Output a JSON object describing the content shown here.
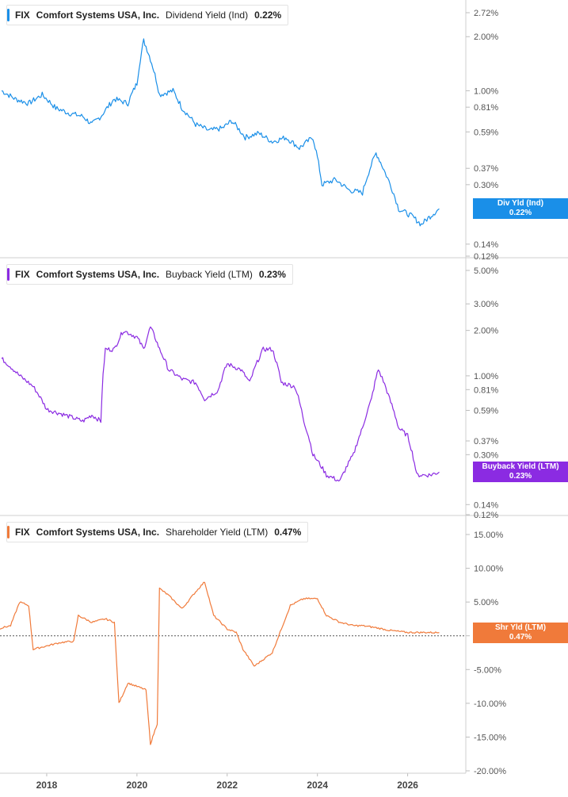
{
  "colors": {
    "dividend": "#1a8fe8",
    "buyback": "#8b2be2",
    "shareholder": "#f07a3a"
  },
  "panels": [
    {
      "id": "dividend",
      "legend": {
        "ticker": "FIX",
        "company": "Comfort Systems USA, Inc.",
        "metric": "Dividend Yield (Ind)",
        "value": "0.22%"
      },
      "badge": {
        "label": "Div Yld (Ind)",
        "value": "0.22%"
      },
      "ticks": [
        "2.72%",
        "2.00%",
        "1.00%",
        "0.81%",
        "0.59%",
        "0.37%",
        "0.30%",
        "0.14%",
        "0.12%"
      ]
    },
    {
      "id": "buyback",
      "legend": {
        "ticker": "FIX",
        "company": "Comfort Systems USA, Inc.",
        "metric": "Buyback Yield (LTM)",
        "value": "0.23%"
      },
      "badge": {
        "label": "Buyback Yield (LTM)",
        "value": "0.23%"
      },
      "ticks": [
        "5.00%",
        "3.00%",
        "2.00%",
        "1.00%",
        "0.81%",
        "0.59%",
        "0.37%",
        "0.30%",
        "0.14%",
        "0.12%"
      ]
    },
    {
      "id": "shareholder",
      "legend": {
        "ticker": "FIX",
        "company": "Comfort Systems USA, Inc.",
        "metric": "Shareholder Yield (LTM)",
        "value": "0.47%"
      },
      "badge": {
        "label": "Shr Yld (LTM)",
        "value": "0.47%"
      },
      "ticks": [
        "15.00%",
        "10.00%",
        "5.00%",
        "0.00%",
        "-5.00%",
        "-10.00%",
        "-15.00%",
        "-20.00%"
      ]
    }
  ],
  "x_axis_labels": [
    "2018",
    "2020",
    "2022",
    "2024",
    "2026"
  ],
  "chart_data": [
    {
      "type": "line",
      "title": "FIX Comfort Systems USA, Inc. Dividend Yield (Ind) 0.22%",
      "y_scale": "log",
      "ylim": [
        0.12,
        2.72
      ],
      "series": [
        {
          "name": "Dividend Yield (Ind)",
          "unit": "%",
          "points": [
            [
              2017.0,
              1.0
            ],
            [
              2017.3,
              0.9
            ],
            [
              2017.6,
              0.85
            ],
            [
              2017.9,
              0.95
            ],
            [
              2018.2,
              0.8
            ],
            [
              2018.5,
              0.75
            ],
            [
              2018.8,
              0.72
            ],
            [
              2019.0,
              0.65
            ],
            [
              2019.2,
              0.72
            ],
            [
              2019.5,
              0.9
            ],
            [
              2019.8,
              0.85
            ],
            [
              2020.0,
              1.1
            ],
            [
              2020.15,
              1.9
            ],
            [
              2020.3,
              1.5
            ],
            [
              2020.5,
              0.95
            ],
            [
              2020.8,
              1.0
            ],
            [
              2021.0,
              0.8
            ],
            [
              2021.3,
              0.65
            ],
            [
              2021.6,
              0.6
            ],
            [
              2021.9,
              0.62
            ],
            [
              2022.1,
              0.68
            ],
            [
              2022.4,
              0.55
            ],
            [
              2022.7,
              0.58
            ],
            [
              2023.0,
              0.52
            ],
            [
              2023.3,
              0.55
            ],
            [
              2023.6,
              0.48
            ],
            [
              2023.9,
              0.55
            ],
            [
              2024.1,
              0.3
            ],
            [
              2024.4,
              0.32
            ],
            [
              2024.7,
              0.28
            ],
            [
              2025.0,
              0.27
            ],
            [
              2025.3,
              0.45
            ],
            [
              2025.5,
              0.35
            ],
            [
              2025.8,
              0.22
            ],
            [
              2026.1,
              0.2
            ],
            [
              2026.3,
              0.18
            ],
            [
              2026.5,
              0.2
            ],
            [
              2026.7,
              0.22
            ]
          ]
        }
      ]
    },
    {
      "type": "line",
      "title": "FIX Comfort Systems USA, Inc. Buyback Yield (LTM) 0.23%",
      "y_scale": "log",
      "ylim": [
        0.12,
        5.0
      ],
      "series": [
        {
          "name": "Buyback Yield (LTM)",
          "unit": "%",
          "points": [
            [
              2017.0,
              1.3
            ],
            [
              2017.4,
              1.0
            ],
            [
              2017.7,
              0.85
            ],
            [
              2018.0,
              0.6
            ],
            [
              2018.4,
              0.55
            ],
            [
              2018.8,
              0.5
            ],
            [
              2019.0,
              0.55
            ],
            [
              2019.2,
              0.5
            ],
            [
              2019.3,
              1.5
            ],
            [
              2019.5,
              1.5
            ],
            [
              2019.7,
              2.0
            ],
            [
              2020.0,
              1.8
            ],
            [
              2020.15,
              1.5
            ],
            [
              2020.3,
              2.1
            ],
            [
              2020.5,
              1.5
            ],
            [
              2020.7,
              1.1
            ],
            [
              2021.0,
              0.95
            ],
            [
              2021.3,
              0.9
            ],
            [
              2021.5,
              0.7
            ],
            [
              2021.8,
              0.8
            ],
            [
              2022.0,
              1.2
            ],
            [
              2022.3,
              1.1
            ],
            [
              2022.5,
              0.9
            ],
            [
              2022.8,
              1.5
            ],
            [
              2023.0,
              1.5
            ],
            [
              2023.2,
              0.9
            ],
            [
              2023.5,
              0.85
            ],
            [
              2023.7,
              0.5
            ],
            [
              2023.9,
              0.3
            ],
            [
              2024.2,
              0.22
            ],
            [
              2024.5,
              0.2
            ],
            [
              2024.8,
              0.3
            ],
            [
              2025.0,
              0.45
            ],
            [
              2025.2,
              0.7
            ],
            [
              2025.35,
              1.1
            ],
            [
              2025.6,
              0.7
            ],
            [
              2025.8,
              0.45
            ],
            [
              2026.0,
              0.4
            ],
            [
              2026.2,
              0.22
            ],
            [
              2026.5,
              0.22
            ],
            [
              2026.7,
              0.23
            ]
          ]
        }
      ]
    },
    {
      "type": "line",
      "title": "FIX Comfort Systems USA, Inc. Shareholder Yield (LTM) 0.47%",
      "ylim": [
        -20,
        15
      ],
      "series": [
        {
          "name": "Shareholder Yield (LTM)",
          "unit": "%",
          "points": [
            [
              2016.9,
              1.0
            ],
            [
              2017.2,
              1.5
            ],
            [
              2017.4,
              5.0
            ],
            [
              2017.6,
              4.5
            ],
            [
              2017.7,
              -2.0
            ],
            [
              2018.0,
              -1.5
            ],
            [
              2018.3,
              -1.0
            ],
            [
              2018.6,
              -0.8
            ],
            [
              2018.7,
              3.0
            ],
            [
              2019.0,
              2.0
            ],
            [
              2019.3,
              2.5
            ],
            [
              2019.5,
              2.0
            ],
            [
              2019.6,
              -10.0
            ],
            [
              2019.8,
              -7.0
            ],
            [
              2020.0,
              -7.5
            ],
            [
              2020.2,
              -8.0
            ],
            [
              2020.3,
              -16.0
            ],
            [
              2020.45,
              -13.0
            ],
            [
              2020.5,
              7.0
            ],
            [
              2020.7,
              6.0
            ],
            [
              2021.0,
              4.0
            ],
            [
              2021.3,
              6.5
            ],
            [
              2021.5,
              8.0
            ],
            [
              2021.7,
              3.0
            ],
            [
              2022.0,
              1.0
            ],
            [
              2022.2,
              0.5
            ],
            [
              2022.35,
              -2.0
            ],
            [
              2022.6,
              -4.5
            ],
            [
              2022.8,
              -3.5
            ],
            [
              2023.0,
              -2.5
            ],
            [
              2023.2,
              1.0
            ],
            [
              2023.4,
              4.5
            ],
            [
              2023.7,
              5.5
            ],
            [
              2024.0,
              5.5
            ],
            [
              2024.2,
              3.0
            ],
            [
              2024.5,
              2.0
            ],
            [
              2024.8,
              1.5
            ],
            [
              2025.0,
              1.5
            ],
            [
              2025.3,
              1.2
            ],
            [
              2025.6,
              0.8
            ],
            [
              2026.0,
              0.5
            ],
            [
              2026.4,
              0.5
            ],
            [
              2026.7,
              0.47
            ]
          ]
        }
      ]
    }
  ]
}
